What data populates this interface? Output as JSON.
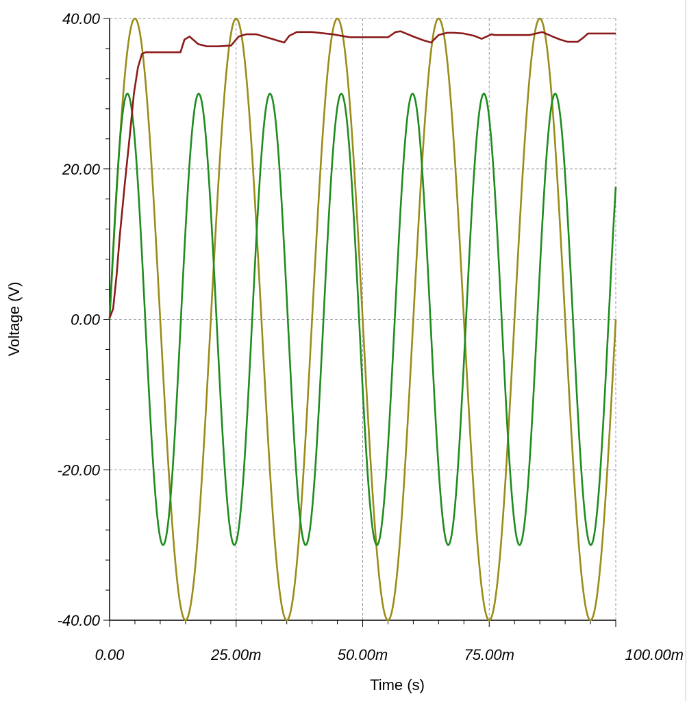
{
  "chart_data": {
    "type": "line",
    "xlabel": "Time (s)",
    "ylabel": "Voltage (V)",
    "xlim": [
      0,
      0.1
    ],
    "ylim": [
      -40,
      40
    ],
    "x_ticks": [
      {
        "value": 0,
        "label": "0.00"
      },
      {
        "value": 0.025,
        "label": "25.00m"
      },
      {
        "value": 0.05,
        "label": "50.00m"
      },
      {
        "value": 0.075,
        "label": "75.00m"
      },
      {
        "value": 0.1,
        "label": "100.00m"
      }
    ],
    "y_ticks": [
      {
        "value": 40,
        "label": "40.00"
      },
      {
        "value": 20,
        "label": "20.00"
      },
      {
        "value": 0,
        "label": "0.00"
      },
      {
        "value": -20,
        "label": "-20.00"
      },
      {
        "value": -40,
        "label": "-40.00"
      }
    ],
    "grid": true,
    "series": [
      {
        "color": "#9a8c18",
        "function": "sine",
        "amplitude": 40,
        "frequency_hz": 50,
        "x_start": 0,
        "x_end": 0.1
      },
      {
        "color": "#1e8c1e",
        "function": "sine",
        "amplitude": 30,
        "frequency_hz": 71,
        "x_start": 0,
        "x_end": 0.1
      },
      {
        "color": "#8b1a1a",
        "function": "points",
        "x": [
          0,
          0.0007,
          0.0014,
          0.002,
          0.003,
          0.004,
          0.0048,
          0.0056,
          0.0064,
          0.0071,
          0.014,
          0.0148,
          0.0158,
          0.0175,
          0.0192,
          0.0215,
          0.024,
          0.0255,
          0.0265,
          0.027,
          0.029,
          0.032,
          0.0345,
          0.0355,
          0.037,
          0.04,
          0.044,
          0.0475,
          0.05,
          0.055,
          0.0565,
          0.0575,
          0.06,
          0.062,
          0.0635,
          0.065,
          0.0667,
          0.068,
          0.07,
          0.072,
          0.0735,
          0.0755,
          0.076,
          0.08,
          0.083,
          0.0855,
          0.0875,
          0.089,
          0.0905,
          0.0925,
          0.0935,
          0.0945,
          0.1
        ],
        "y": [
          0.2,
          1.4,
          6,
          11,
          18,
          24.5,
          30,
          33.5,
          35.3,
          35.5,
          35.5,
          37.2,
          37.6,
          36.6,
          36.3,
          36.3,
          36.4,
          37.6,
          37.8,
          37.9,
          37.9,
          37.3,
          36.8,
          37.7,
          38.2,
          38.2,
          37.9,
          37.5,
          37.5,
          37.5,
          38.2,
          38.3,
          37.6,
          37.1,
          36.8,
          37.8,
          38.1,
          38.1,
          38.0,
          37.7,
          37.3,
          37.9,
          37.8,
          37.8,
          37.8,
          38.2,
          37.6,
          37.2,
          36.9,
          36.9,
          37.4,
          38.0,
          38.0
        ]
      }
    ]
  }
}
